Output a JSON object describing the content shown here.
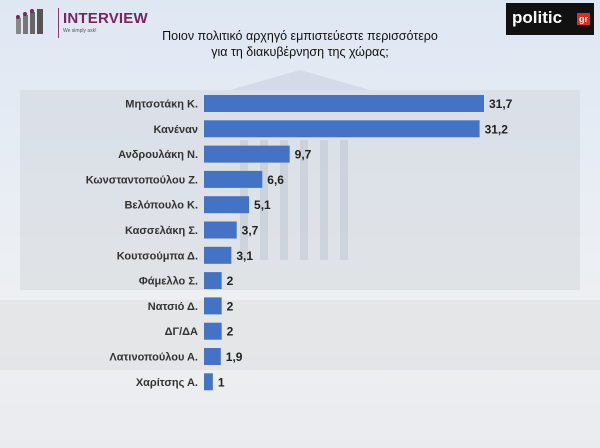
{
  "header": {
    "left_logo": {
      "name": "INTERVIEW",
      "tagline": "We simply ask!",
      "color": "#7a2462"
    },
    "right_logo": {
      "name": "politic",
      "suffix": "gr"
    },
    "title_line1": "Ποιον πολιτικό αρχηγό εμπιστεύεστε περισσότερο",
    "title_line2": "για τη διακυβέρνηση της χώρας;"
  },
  "chart_data": {
    "type": "bar",
    "orientation": "horizontal",
    "title": "Ποιον πολιτικό αρχηγό εμπιστεύεστε περισσότερο για τη διακυβέρνηση της χώρας;",
    "categories": [
      "Μητσοτάκη Κ.",
      "Κανέναν",
      "Ανδρουλάκη Ν.",
      "Κωνσταντοπούλου Ζ.",
      "Βελόπουλο Κ.",
      "Κασσελάκη Σ.",
      "Κουτσούμπα Δ.",
      "Φάμελλο Σ.",
      "Νατσιό Δ.",
      "ΔΓ/ΔΑ",
      "Λατινοπούλου Α.",
      "Χαρίτσης Α."
    ],
    "values": [
      31.7,
      31.2,
      9.7,
      6.6,
      5.1,
      3.7,
      3.1,
      2,
      2,
      2,
      1.9,
      1
    ],
    "value_labels": [
      "31,7",
      "31,2",
      "9,7",
      "6,6",
      "5,1",
      "3,7",
      "3,1",
      "2",
      "2",
      "2",
      "1,9",
      "1"
    ],
    "bar_color": "#4472c4",
    "xlabel": "",
    "ylabel": "",
    "xlim": [
      0,
      31.7
    ],
    "grid": false,
    "legend": "none"
  }
}
